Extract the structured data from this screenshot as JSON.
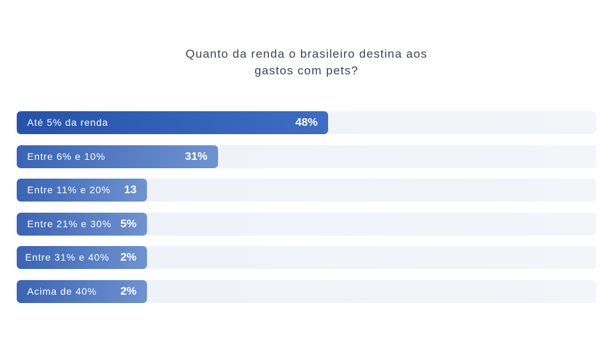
{
  "chart_data": {
    "type": "bar",
    "orientation": "horizontal",
    "title_lines": [
      "Quanto da renda o brasileiro destina aos",
      "gastos com pets?"
    ],
    "categories": [
      "Até 5% da renda",
      "Entre 6% e 10%",
      "Entre 11% e 20%",
      "Entre 21% e 30%",
      "Entre 31% e 40%",
      "Acima de 40%"
    ],
    "values": [
      48,
      31,
      13,
      5,
      2,
      2
    ],
    "value_labels": [
      "48%",
      "31%",
      "13",
      "5%",
      "2%",
      "2%"
    ],
    "xlim": [
      0,
      100
    ],
    "grid": false,
    "legend": "none",
    "colors": {
      "bar_start": "#2553ab",
      "bar_end": "#6f93d0",
      "track": "#eef1f7",
      "title": "#3f4356"
    }
  }
}
